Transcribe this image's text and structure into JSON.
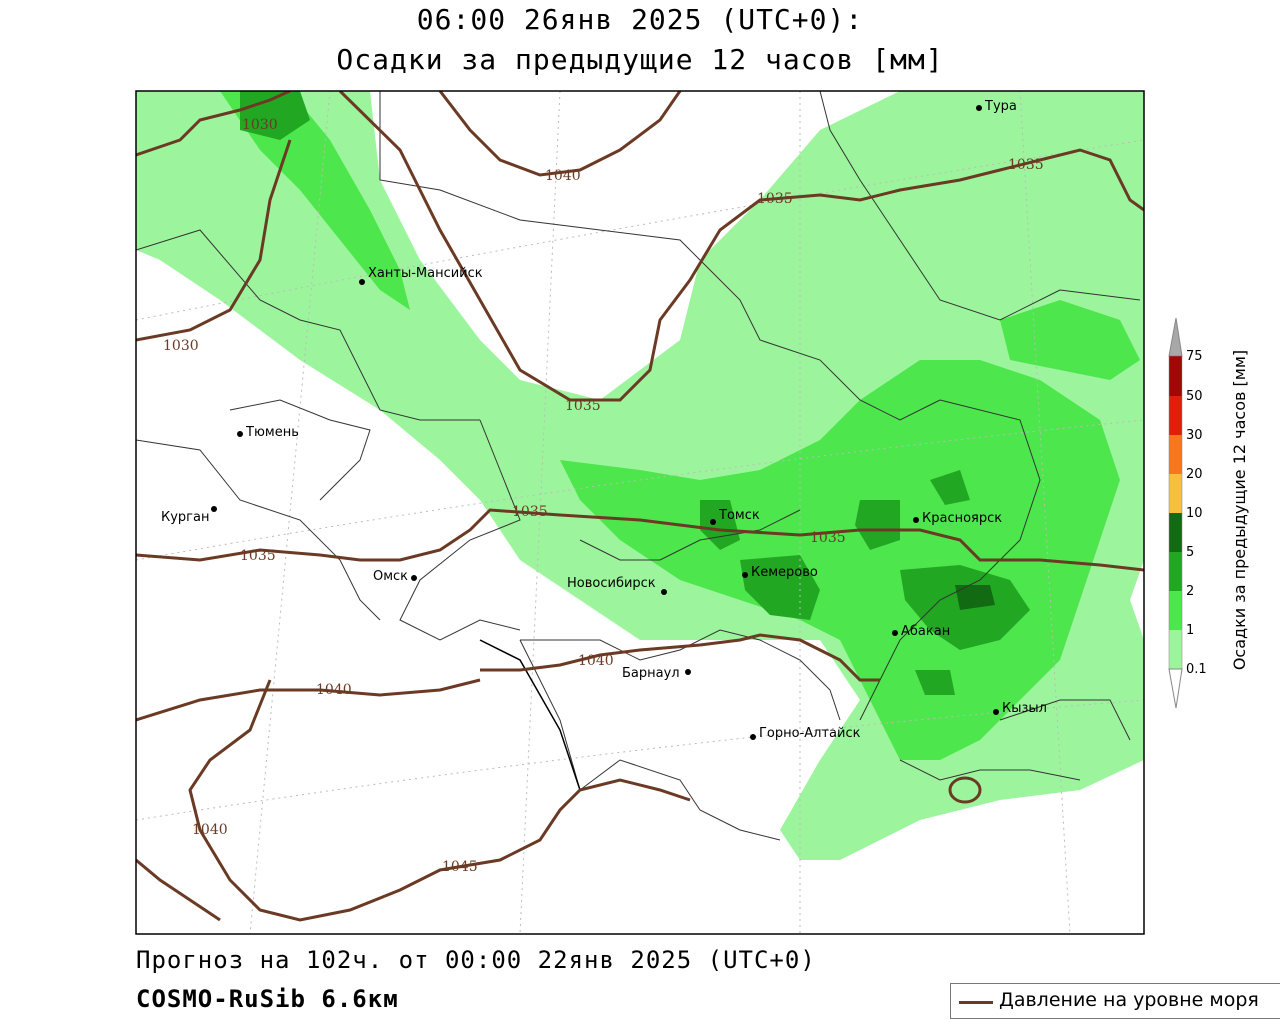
{
  "header": {
    "title_line1": "06:00 26янв 2025 (UTC+0):",
    "title_line2": "Осадки за предыдущие 12 часов [мм]"
  },
  "footer": {
    "forecast": "Прогноз на 102ч. от 00:00 22янв 2025 (UTC+0)",
    "model": "COSMO-RuSib 6.6км"
  },
  "legend": {
    "pressure_label": "Давление на уровне моря",
    "pressure_color": "#6b3a24"
  },
  "colorbar": {
    "title": "Осадки за предыдущие 12 часов [мм]",
    "levels": [
      "0.1",
      "1",
      "2",
      "5",
      "10",
      "20",
      "30",
      "50",
      "75"
    ],
    "colors": [
      "#ffffff",
      "#9cf59c",
      "#4de64d",
      "#22a722",
      "#126b12",
      "#f5c13c",
      "#f5781e",
      "#e01e0a",
      "#a00808",
      "#a8a8a8"
    ]
  },
  "cities": [
    {
      "name": "Тура"
    },
    {
      "name": "Ханты-Мансийск"
    },
    {
      "name": "Тюмень"
    },
    {
      "name": "Курган"
    },
    {
      "name": "Омск"
    },
    {
      "name": "Новосибирск"
    },
    {
      "name": "Томск"
    },
    {
      "name": "Кемерово"
    },
    {
      "name": "Красноярск"
    },
    {
      "name": "Абакан"
    },
    {
      "name": "Барнаул"
    },
    {
      "name": "Горно-Алтайск"
    },
    {
      "name": "Кызыл"
    }
  ],
  "isobars": [
    "1030",
    "1030",
    "1040",
    "1035",
    "1035",
    "1035",
    "1035",
    "1035",
    "1035",
    "1040",
    "1040",
    "1040",
    "1045"
  ]
}
